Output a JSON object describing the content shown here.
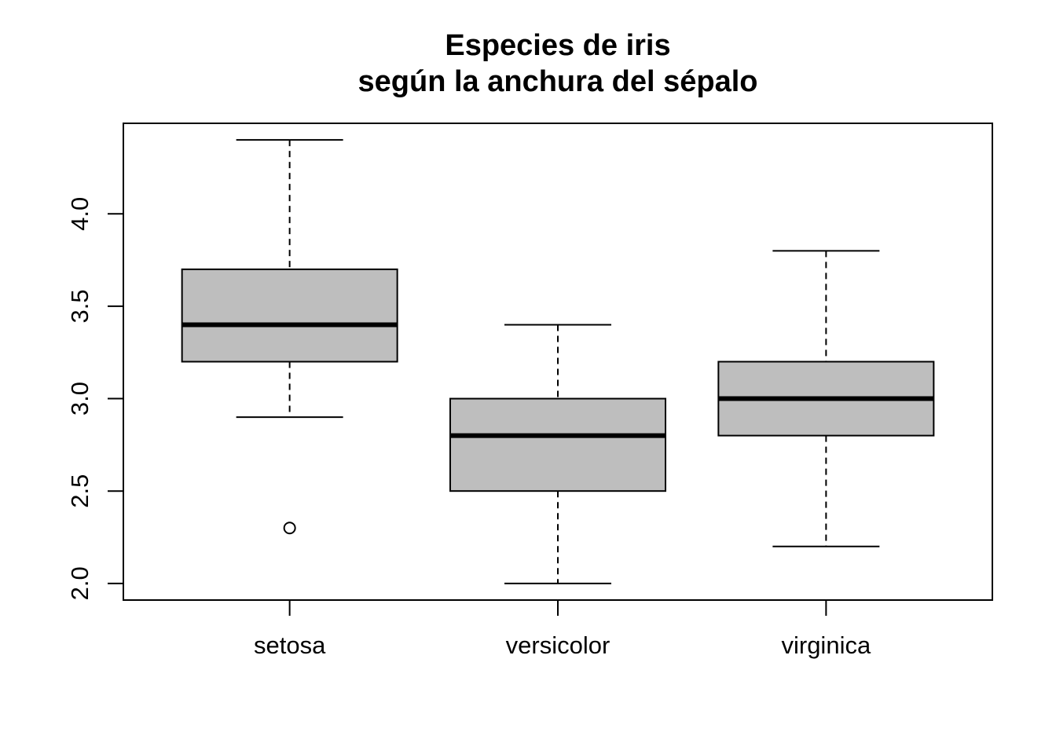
{
  "chart_data": {
    "type": "boxplot",
    "title": [
      "Especies de iris",
      "según la anchura del sépalo"
    ],
    "xlabel": "",
    "ylabel": "",
    "categories": [
      "setosa",
      "versicolor",
      "virginica"
    ],
    "yticks": [
      "2.0",
      "2.5",
      "3.0",
      "3.5",
      "4.0"
    ],
    "ylim": [
      1.91,
      4.49
    ],
    "grid": false,
    "legend": "none",
    "colors": {
      "box_fill": "#bebebe",
      "stroke": "#000000",
      "background": "#ffffff"
    },
    "boxes": [
      {
        "category": "setosa",
        "whisker_low": 2.9,
        "q1": 3.2,
        "median": 3.4,
        "q3": 3.7,
        "whisker_high": 4.4,
        "outliers": [
          2.3
        ]
      },
      {
        "category": "versicolor",
        "whisker_low": 2.0,
        "q1": 2.5,
        "median": 2.8,
        "q3": 3.0,
        "whisker_high": 3.4,
        "outliers": []
      },
      {
        "category": "virginica",
        "whisker_low": 2.2,
        "q1": 2.8,
        "median": 3.0,
        "q3": 3.2,
        "whisker_high": 3.8,
        "outliers": []
      }
    ]
  }
}
